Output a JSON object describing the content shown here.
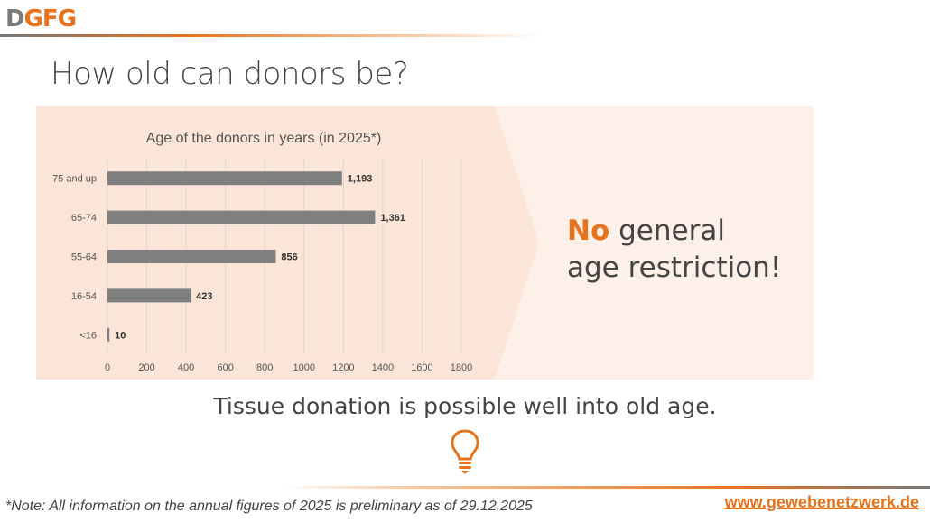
{
  "logo": {
    "part1": "D",
    "part2": "GFG"
  },
  "title": "How old can donors be?",
  "statement": {
    "highlight": "No",
    "rest1": " general",
    "rest2": "age restriction!"
  },
  "subtitle": "Tissue donation is possible well into old age.",
  "icon": "lightbulb-icon",
  "footer": {
    "note": "*Note: All information on the annual figures of 2025 is preliminary as of 29.12.2025",
    "url": "www.gewebenetzwerk.de"
  },
  "colors": {
    "accent": "#e8731f",
    "bar": "#7f7f7f",
    "panel": "#fbe5d8"
  },
  "chart_data": {
    "type": "bar",
    "orientation": "horizontal",
    "title": "Age of the donors in years (in 2025*)",
    "categories": [
      "75 and up",
      "65-74",
      "55-64",
      "16-54",
      "<16"
    ],
    "values": [
      1193,
      1361,
      856,
      423,
      10
    ],
    "data_labels": [
      "1,193",
      "1,361",
      "856",
      "423",
      "10"
    ],
    "xlim": [
      0,
      1800
    ],
    "xticks": [
      0,
      200,
      400,
      600,
      800,
      1000,
      1200,
      1400,
      1600,
      1800
    ],
    "grid": true,
    "legend": "none"
  }
}
